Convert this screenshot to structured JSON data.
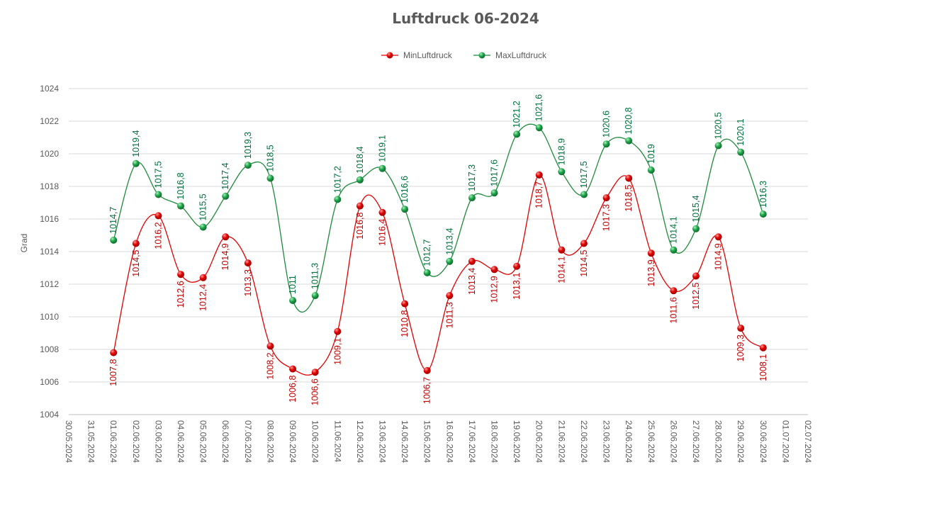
{
  "chart_data": {
    "type": "line",
    "title": "Luftdruck 06-2024",
    "ylabel": "Grad",
    "xlabel": "",
    "ylim": [
      1004,
      1024
    ],
    "ystep": 2,
    "grid": true,
    "legend_position": "top",
    "x_ticks": [
      "30.05.2024",
      "31.05.2024",
      "01.06.2024",
      "02.06.2024",
      "03.06.2024",
      "04.06.2024",
      "05.06.2024",
      "06.06.2024",
      "07.06.2024",
      "08.06.2024",
      "09.06.2024",
      "10.06.2024",
      "11.06.2024",
      "12.06.2024",
      "13.06.2024",
      "14.06.2024",
      "15.06.2024",
      "16.06.2024",
      "17.06.2024",
      "18.06.2024",
      "19.06.2024",
      "20.06.2024",
      "21.06.2024",
      "22.06.2024",
      "23.06.2024",
      "24.06.2024",
      "25.06.2024",
      "26.06.2024",
      "27.06.2024",
      "28.06.2024",
      "29.06.2024",
      "30.06.2024",
      "01.07.2024",
      "02.07.2024"
    ],
    "categories": [
      "01.06.2024",
      "02.06.2024",
      "03.06.2024",
      "04.06.2024",
      "05.06.2024",
      "06.06.2024",
      "07.06.2024",
      "08.06.2024",
      "09.06.2024",
      "10.06.2024",
      "11.06.2024",
      "12.06.2024",
      "13.06.2024",
      "14.06.2024",
      "15.06.2024",
      "16.06.2024",
      "17.06.2024",
      "18.06.2024",
      "19.06.2024",
      "20.06.2024",
      "21.06.2024",
      "22.06.2024",
      "23.06.2024",
      "24.06.2024",
      "25.06.2024",
      "26.06.2024",
      "27.06.2024",
      "28.06.2024",
      "29.06.2024",
      "30.06.2024"
    ],
    "series": [
      {
        "name": "MinLuftdruck",
        "color": "#e00000",
        "values": [
          1007.8,
          1014.5,
          1016.2,
          1012.6,
          1012.4,
          1014.9,
          1013.3,
          1008.2,
          1006.8,
          1006.6,
          1009.1,
          1016.8,
          1016.4,
          1010.8,
          1006.7,
          1011.3,
          1013.4,
          1012.9,
          1013.1,
          1018.7,
          1014.1,
          1014.5,
          1017.3,
          1018.5,
          1013.9,
          1011.6,
          1012.5,
          1014.9,
          1009.3,
          1008.1
        ],
        "labels": [
          "1007,8",
          "1014,5",
          "1016,2",
          "1012,6",
          "1012,4",
          "1014,9",
          "1013,3",
          "1008,2",
          "1006,8",
          "1006,6",
          "1009,1",
          "1016,8",
          "1016,4",
          "1010,8",
          "1006,7",
          "1011,3",
          "1013,4",
          "1012,9",
          "1013,1",
          "1018,7",
          "1014,1",
          "1014,5",
          "1017,3",
          "1018,5",
          "1013,9",
          "1011,6",
          "1012,5",
          "1014,9",
          "1009,3",
          "1008,1"
        ]
      },
      {
        "name": "MaxLuftdruck",
        "color": "#1e8a3c",
        "values": [
          1014.7,
          1019.4,
          1017.5,
          1016.8,
          1015.5,
          1017.4,
          1019.3,
          1018.5,
          1011,
          1011.3,
          1017.2,
          1018.4,
          1019.1,
          1016.6,
          1012.7,
          1013.4,
          1017.3,
          1017.6,
          1021.2,
          1021.6,
          1018.9,
          1017.5,
          1020.6,
          1020.8,
          1019,
          1014.1,
          1015.4,
          1020.5,
          1020.1,
          1016.3
        ],
        "labels": [
          "1014,7",
          "1019,4",
          "1017,5",
          "1016,8",
          "1015,5",
          "1017,4",
          "1019,3",
          "1018,5",
          "1011",
          "1011,3",
          "1017,2",
          "1018,4",
          "1019,1",
          "1016,6",
          "1012,7",
          "1013,4",
          "1017,3",
          "1017,6",
          "1021,2",
          "1021,6",
          "1018,9",
          "1017,5",
          "1020,6",
          "1020,8",
          "1019",
          "1014,1",
          "1015,4",
          "1020,5",
          "1020,1",
          "1016,3"
        ]
      }
    ]
  }
}
